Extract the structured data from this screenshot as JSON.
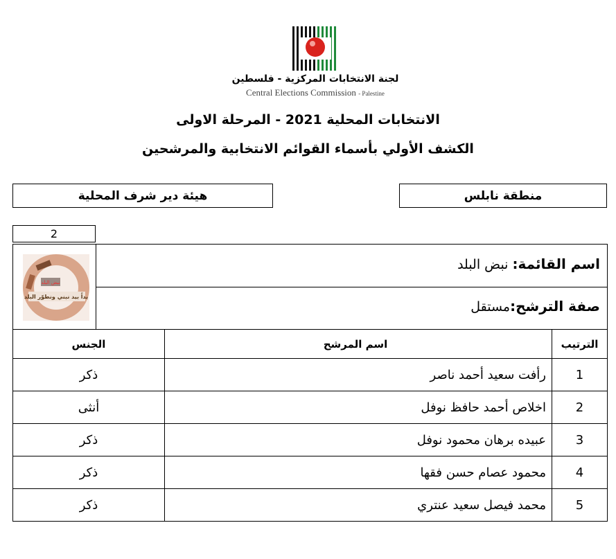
{
  "header": {
    "org_ar": "لجنة الانتخابات المركزية - فلسطين",
    "org_en": "Central Elections Commission",
    "org_en_suffix": "- Palestine",
    "title": "الانتخابات المحلية 2021  - المرحلة الاولى",
    "subtitle": "الكشف الأولي بأسماء القوائم الانتخابية والمرشحين"
  },
  "region": "منطقة نابلس",
  "council": "هيئة دير شرف المحلية",
  "list_number": "2",
  "list": {
    "name_label": "اسم القائمة:",
    "name": "نبض البلد",
    "type_label": "صفة الترشح:",
    "type": "مستقل",
    "logo_text": [
      "نبض البلد",
      "يداً بيد نبني ونطوّر البلد"
    ]
  },
  "table": {
    "headers": {
      "rank": "الترتيب",
      "name": "اسم المرشح",
      "gender": "الجنس"
    },
    "rows": [
      {
        "rank": "1",
        "name": "رأفت سعيد أحمد ناصر",
        "gender": "ذكر"
      },
      {
        "rank": "2",
        "name": "اخلاص أحمد حافظ نوفل",
        "gender": "أنثى"
      },
      {
        "rank": "3",
        "name": "عبيده برهان محمود نوفل",
        "gender": "ذكر"
      },
      {
        "rank": "4",
        "name": "محمود عصام حسن فقها",
        "gender": "ذكر"
      },
      {
        "rank": "5",
        "name": "محمد فيصل سعيد عنتري",
        "gender": "ذكر"
      }
    ]
  },
  "colors": {
    "logo_red": "#d9231d",
    "logo_green": "#1f8a3a"
  }
}
